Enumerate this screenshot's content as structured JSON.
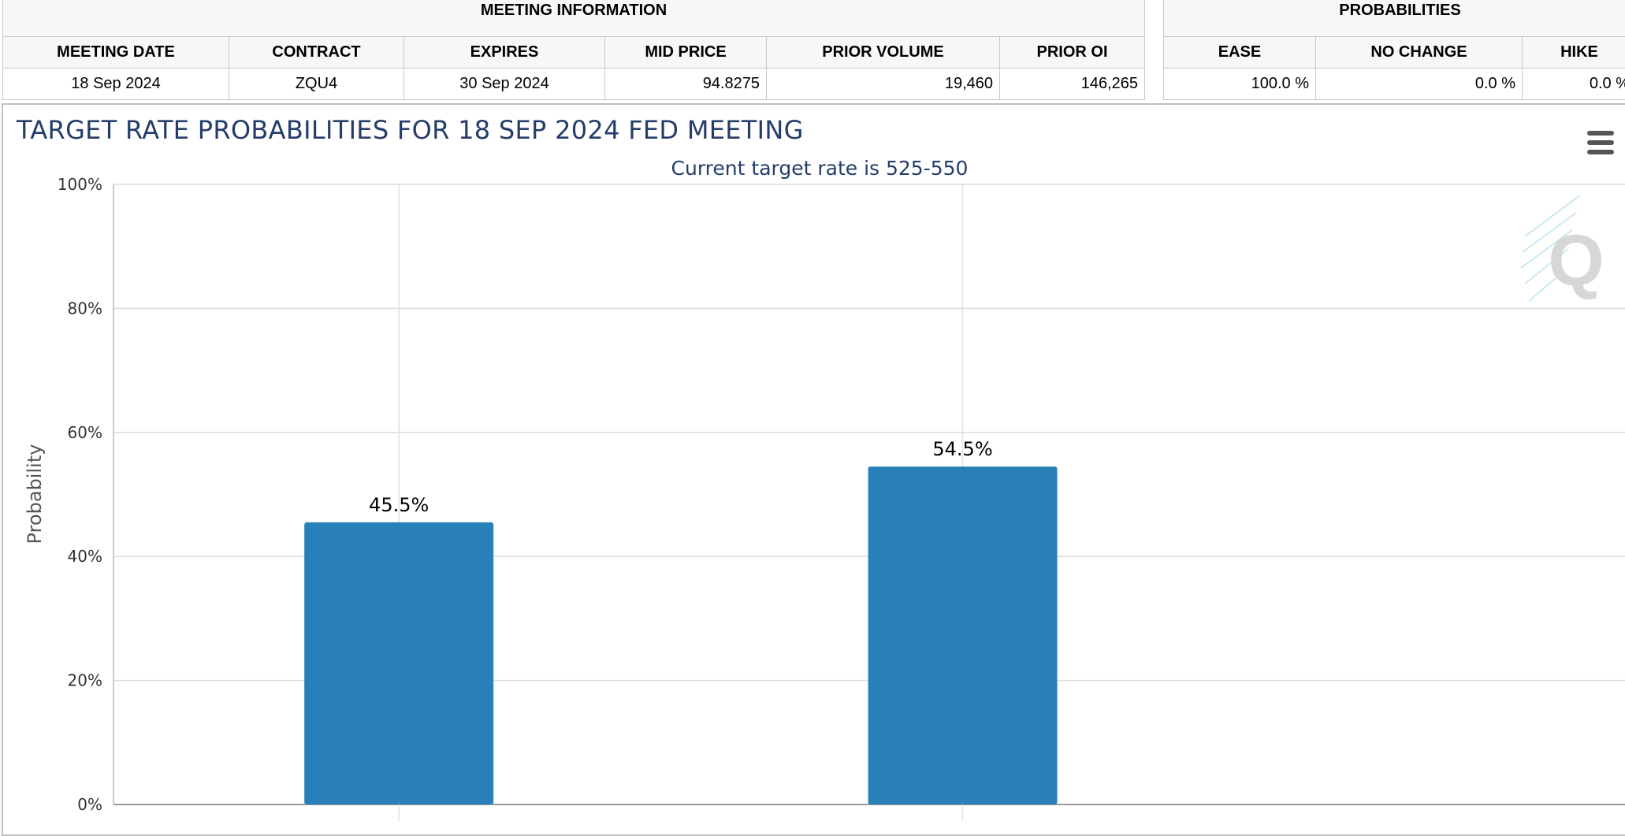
{
  "meeting_info": {
    "group_title": "MEETING INFORMATION",
    "headers": [
      "MEETING DATE",
      "CONTRACT",
      "EXPIRES",
      "MID PRICE",
      "PRIOR VOLUME",
      "PRIOR OI"
    ],
    "values": [
      "18 Sep 2024",
      "ZQU4",
      "30 Sep 2024",
      "94.8275",
      "19,460",
      "146,265"
    ]
  },
  "probabilities": {
    "group_title": "PROBABILITIES",
    "headers": [
      "EASE",
      "NO CHANGE",
      "HIKE"
    ],
    "values": [
      "100.0 %",
      "0.0 %",
      "0.0 %"
    ]
  },
  "chart_data": {
    "type": "bar",
    "title": "TARGET RATE PROBABILITIES FOR 18 SEP 2024 FED MEETING",
    "subtitle": "Current target rate is 525-550",
    "xlabel": "",
    "ylabel": "Probability",
    "ylim": [
      0,
      100
    ],
    "y_ticks": [
      "0%",
      "20%",
      "40%",
      "60%",
      "80%",
      "100%"
    ],
    "categories": [
      "",
      ""
    ],
    "values": [
      45.5,
      54.5
    ],
    "data_labels": [
      "45.5%",
      "54.5%"
    ],
    "bar_color": "#2980b9",
    "grid": true,
    "legend": "none"
  }
}
